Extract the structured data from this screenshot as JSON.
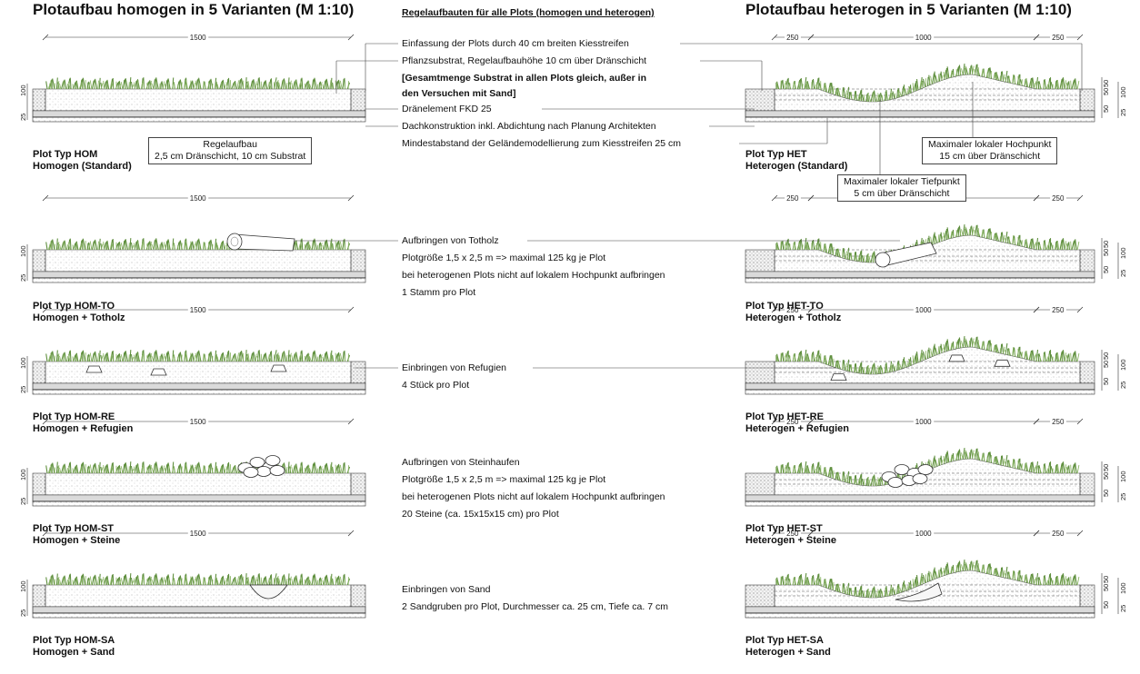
{
  "titles": {
    "left": "Plotaufbau homogen in 5 Varianten (M 1:10)",
    "center": "Regelaufbauten für alle Plots (homogen und heterogen)",
    "right": "Plotaufbau heterogen in 5 Varianten (M 1:10)"
  },
  "dimensions": {
    "hom_total": "1500",
    "het_edge": "250",
    "het_center": "1000",
    "v100": "100",
    "v25": "25",
    "v50": "50"
  },
  "callouts": {
    "regelaufbau_title": "Regelaufbau",
    "regelaufbau_text": "2,5 cm Dränschicht, 10 cm Substrat",
    "hochpunkt_title": "Maximaler lokaler Hochpunkt",
    "hochpunkt_text": "15 cm über Dränschicht",
    "tiefpunkt_title": "Maximaler lokaler Tiefpunkt",
    "tiefpunkt_text": "5 cm über Dränschicht"
  },
  "rules": {
    "line1": "Einfassung der Plots durch 40 cm breiten Kiesstreifen",
    "line2": "Pflanzsubstrat, Regelaufbauhöhe 10 cm über Dränschicht",
    "line3": "[Gesamtmenge Substrat in allen Plots gleich, außer in",
    "line4": "den Versuchen mit Sand]",
    "line5": "Dränelement FKD 25",
    "line6": "Dachkonstruktion inkl. Abdichtung nach Planung Architekten",
    "line7": "Mindestabstand der Geländemodellierung zum Kiesstreifen 25 cm"
  },
  "rows": [
    {
      "hom_name": "Plot Typ HOM",
      "hom_sub": "Homogen (Standard)",
      "het_name": "Plot Typ HET",
      "het_sub": "Heterogen (Standard)",
      "notes": []
    },
    {
      "hom_name": "Plot Typ HOM-TO",
      "hom_sub": "Homogen + Totholz",
      "het_name": "Plot Typ HET-TO",
      "het_sub": "Heterogen + Totholz",
      "notes": [
        "Aufbringen von Totholz",
        "Plotgröße 1,5 x 2,5 m => maximal 125 kg je Plot",
        "bei heterogenen Plots nicht auf lokalem Hochpunkt aufbringen",
        "1 Stamm pro Plot"
      ]
    },
    {
      "hom_name": "Plot Typ HOM-RE",
      "hom_sub": "Homogen + Refugien",
      "het_name": "Plot Typ HET-RE",
      "het_sub": "Heterogen + Refugien",
      "notes": [
        "Einbringen von Refugien",
        "4 Stück pro Plot"
      ]
    },
    {
      "hom_name": "Plot Typ HOM-ST",
      "hom_sub": "Homogen + Steine",
      "het_name": "Plot Typ HET-ST",
      "het_sub": "Heterogen + Steine",
      "notes": [
        "Aufbringen von Steinhaufen",
        "Plotgröße 1,5 x 2,5 m => maximal 125 kg je Plot",
        "bei heterogenen Plots nicht auf lokalem Hochpunkt aufbringen",
        "20 Steine (ca. 15x15x15 cm) pro Plot"
      ]
    },
    {
      "hom_name": "Plot Typ HOM-SA",
      "hom_sub": "Homogen + Sand",
      "het_name": "Plot Typ HET-SA",
      "het_sub": "Heterogen + Sand",
      "notes": [
        "Einbringen von Sand",
        "2 Sandgruben pro Plot, Durchmesser ca. 25 cm, Tiefe ca. 7 cm"
      ]
    }
  ],
  "colors": {
    "grass": "#5f8f3e",
    "grass_light": "#8fb86a",
    "line": "#333333",
    "stipple": "#9a9a9a"
  }
}
